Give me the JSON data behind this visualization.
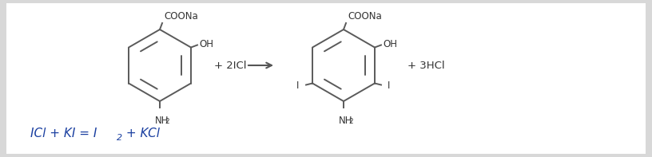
{
  "bg_color": "#d8d8d8",
  "inner_bg_color": "#ffffff",
  "mol_color": "#5a5a5a",
  "text_color_dark": "#333333",
  "text_color_blue": "#b07020",
  "label_color": "#333333",
  "blue_eq_color": "#1a3fa0",
  "arrow_color": "#555555",
  "plus1": "+ 2ICl",
  "plus2": "+ 3HCl",
  "coona": "COONa",
  "oh": "OH",
  "nh2": "NH",
  "iodine": "I",
  "eq_text": "ICl + KI = I",
  "eq_sub": "2",
  "eq_end": " + KCl"
}
